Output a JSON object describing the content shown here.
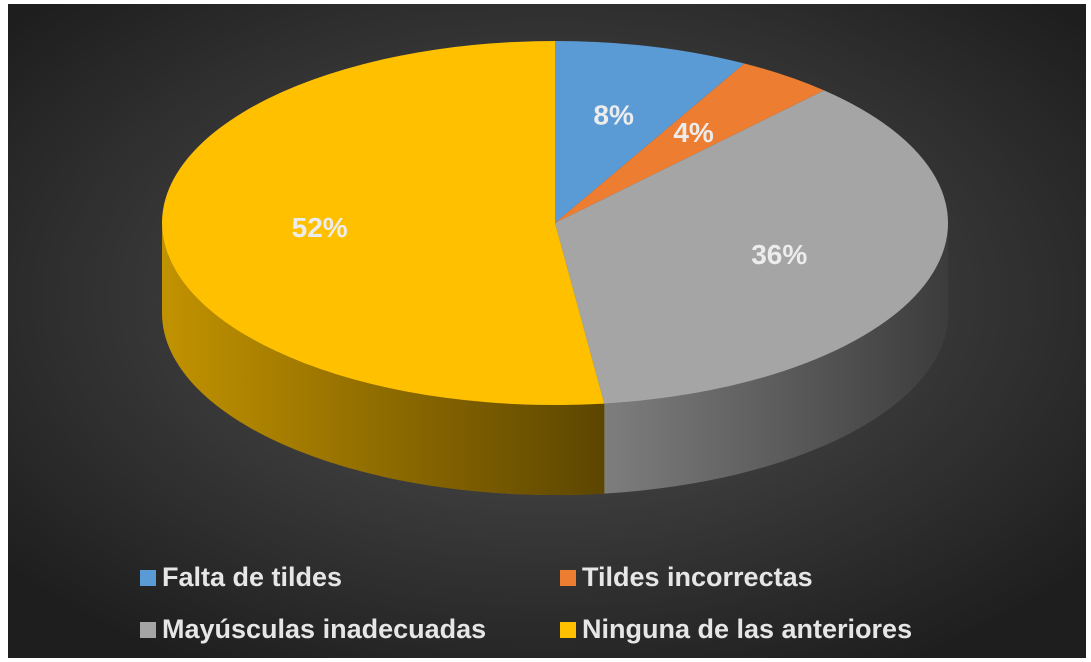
{
  "chart_data": {
    "type": "pie",
    "categories": [
      "Falta de tildes",
      "Tildes incorrectas",
      "Mayúsculas inadecuadas",
      "Ninguna de las anteriores"
    ],
    "values": [
      8,
      4,
      36,
      52
    ],
    "value_labels": [
      "8%",
      "4%",
      "36%",
      "52%"
    ],
    "colors": [
      "#5b9bd5",
      "#ed7d31",
      "#a5a5a5",
      "#ffc000"
    ],
    "legend": "bottom"
  }
}
